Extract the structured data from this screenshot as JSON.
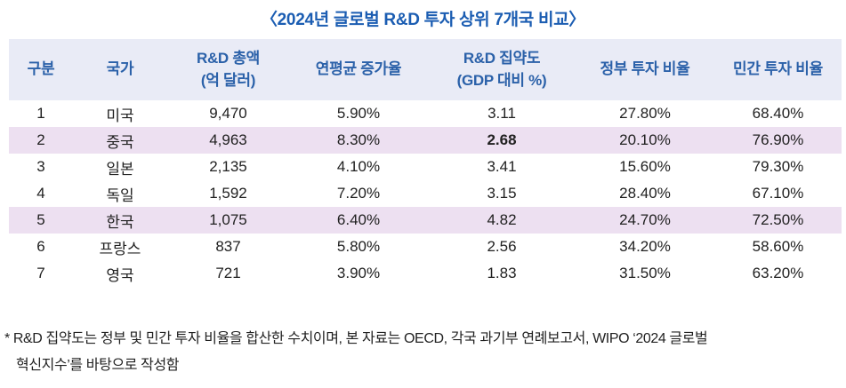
{
  "title": "〈2024년 글로벌 R&D 투자 상위 7개국 비교〉",
  "chart_data": {
    "type": "table",
    "title": "2024년 글로벌 R&D 투자 상위 7개국 비교",
    "columns": [
      {
        "key": "rank",
        "label": "구분",
        "sub": ""
      },
      {
        "key": "country",
        "label": "국가",
        "sub": ""
      },
      {
        "key": "total",
        "label": "R&D 총액",
        "sub": "(억 달러)"
      },
      {
        "key": "growth",
        "label": "연평균 증가율",
        "sub": ""
      },
      {
        "key": "intensity",
        "label": "R&D 집약도",
        "sub": "(GDP 대비 %)"
      },
      {
        "key": "gov_share",
        "label": "정부 투자 비율",
        "sub": ""
      },
      {
        "key": "private_share",
        "label": "민간 투자 비율",
        "sub": ""
      }
    ],
    "rows": [
      {
        "rank": "1",
        "country": "미국",
        "total": "9,470",
        "growth": "5.90%",
        "intensity": "3.11",
        "gov_share": "27.80%",
        "private_share": "68.40%",
        "highlighted": false,
        "emphasize_intensity": false
      },
      {
        "rank": "2",
        "country": "중국",
        "total": "4,963",
        "growth": "8.30%",
        "intensity": "2.68",
        "gov_share": "20.10%",
        "private_share": "76.90%",
        "highlighted": true,
        "emphasize_intensity": true
      },
      {
        "rank": "3",
        "country": "일본",
        "total": "2,135",
        "growth": "4.10%",
        "intensity": "3.41",
        "gov_share": "15.60%",
        "private_share": "79.30%",
        "highlighted": false,
        "emphasize_intensity": false
      },
      {
        "rank": "4",
        "country": "독일",
        "total": "1,592",
        "growth": "7.20%",
        "intensity": "3.15",
        "gov_share": "28.40%",
        "private_share": "67.10%",
        "highlighted": false,
        "emphasize_intensity": false
      },
      {
        "rank": "5",
        "country": "한국",
        "total": "1,075",
        "growth": "6.40%",
        "intensity": "4.82",
        "gov_share": "24.70%",
        "private_share": "72.50%",
        "highlighted": true,
        "emphasize_intensity": false
      },
      {
        "rank": "6",
        "country": "프랑스",
        "total": "837",
        "growth": "5.80%",
        "intensity": "2.56",
        "gov_share": "34.20%",
        "private_share": "58.60%",
        "highlighted": false,
        "emphasize_intensity": false
      },
      {
        "rank": "7",
        "country": "영국",
        "total": "721",
        "growth": "3.90%",
        "intensity": "1.83",
        "gov_share": "31.50%",
        "private_share": "63.20%",
        "highlighted": false,
        "emphasize_intensity": false
      }
    ]
  },
  "footnote": {
    "line1": "* R&D 집약도는 정부 및 민간 투자 비율을 합산한 수치이며, 본 자료는 OECD, 각국 과기부 연례보고서, WIPO ‘2024 글로벌",
    "line2": "혁신지수’를 바탕으로 작성함"
  },
  "colors": {
    "title_text": "#1b5db2",
    "header_background": "#e9ebf6",
    "header_text": "#2b61a9",
    "highlight_row_background": "#ede0f1",
    "body_text": "#212121",
    "page_background": "#ffffff"
  }
}
